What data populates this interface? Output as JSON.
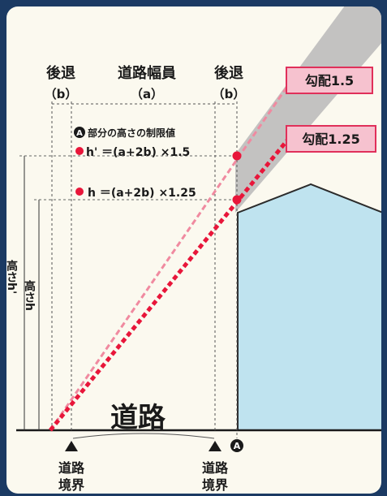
{
  "labels": {
    "setback_left": "後退",
    "setback_left_sub": "（b）",
    "road_width": "道路幅員",
    "road_width_sub": "（a）",
    "setback_right": "後退",
    "setback_right_sub": "（b）",
    "gradient_15": "勾配1.5",
    "gradient_125": "勾配1.25",
    "height_limit_title": "部分の高さの制限値",
    "point_a_marker": "A",
    "formula_h_prime": "h' ＝(a+2b) ×1.5",
    "formula_h": "h ＝(a+2b) ×1.25",
    "height_prime_label": "高さh'",
    "height_label": "高さh",
    "road_label": "道路",
    "boundary_left_line1": "道路",
    "boundary_left_line2": "境界",
    "boundary_right_line1": "道路",
    "boundary_right_line2": "境界"
  },
  "colors": {
    "frame": "#1b3a63",
    "paper": "#fbf9ef",
    "building": "#bfe3ef",
    "gray_band": "#b9b9b9",
    "line_15": "#f08aa0",
    "line_125": "#e8163a",
    "tag_fill": "#f6c2cf",
    "tag_border": "#e0305a",
    "text": "#1a1a1a"
  }
}
